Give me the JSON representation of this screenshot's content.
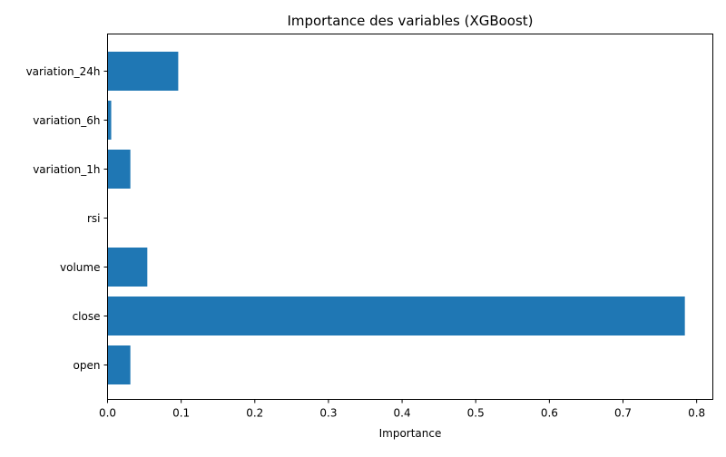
{
  "chart_data": {
    "type": "bar",
    "orientation": "horizontal",
    "title": "Importance des variables (XGBoost)",
    "xlabel": "Importance",
    "ylabel": "",
    "categories": [
      "open",
      "close",
      "volume",
      "rsi",
      "variation_1h",
      "variation_6h",
      "variation_24h"
    ],
    "values": [
      0.031,
      0.784,
      0.054,
      0.0,
      0.031,
      0.005,
      0.096
    ],
    "xlim": [
      0,
      0.822
    ],
    "xticks": [
      "0.0",
      "0.1",
      "0.2",
      "0.3",
      "0.4",
      "0.5",
      "0.6",
      "0.7",
      "0.8"
    ],
    "grid": false,
    "legend": "none",
    "bar_color": "#1f77b4"
  }
}
